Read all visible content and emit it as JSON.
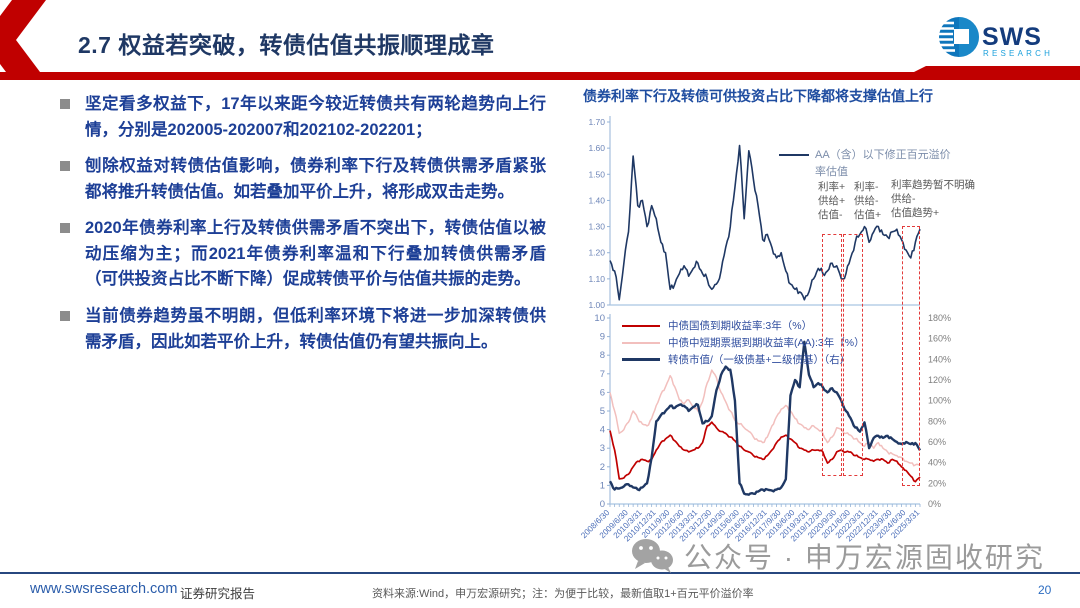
{
  "header": {
    "title": "2.7 权益若突破，转债估值共振顺理成章",
    "logo": {
      "name": "SWS",
      "sub": "RESEARCH"
    },
    "accent_color": "#c00000",
    "title_color": "#1f3864"
  },
  "bullets": [
    "坚定看多权益下，17年以来距今较近转债共有两轮趋势向上行情，分别是202005-202007和202102-202201；",
    "刨除权益对转债估值影响，债券利率下行及转债供需矛盾紧张都将推升转债估值。如若叠加平价上升，将形成双击走势。",
    "2020年债券利率上行及转债供需矛盾不突出下，转债估值以被动压缩为主；而2021年债券利率温和下行叠加转债供需矛盾（可供投资占比不断下降）促成转债平价与估值共振的走势。",
    "当前债券趋势虽不明朗，但低利率环境下将进一步加深转债供需矛盾，因此如若平价上升，转债估值仍有望共振向上。"
  ],
  "chart_panel": {
    "title": "债券利率下行及转债可供投资占比下降都将支撑估值上行",
    "annotations": [
      [
        "利率+",
        "供给+",
        "估值-"
      ],
      [
        "利率-",
        "供给-",
        "估值+"
      ],
      [
        "利率趋势暂不明确",
        "供给-",
        "估值趋势+"
      ]
    ],
    "highlight_color": "#e23b3b"
  },
  "chart_data": [
    {
      "type": "line",
      "name": "转债估值",
      "legend": "AA（含）以下修正百元溢价率估值",
      "ylim": [
        1.0,
        1.7
      ],
      "yticks": [
        "1.00",
        "1.10",
        "1.20",
        "1.30",
        "1.40",
        "1.50",
        "1.60",
        "1.70"
      ],
      "x_range": "2008/6/30 - 2025/3/31, quarterly",
      "grid": false,
      "legend_position": "right-center",
      "series": [
        {
          "name": "AA（含）以下修正百元溢价率估值",
          "color": "#1f3864",
          "values": [
            1.17,
            1.13,
            1.02,
            1.16,
            1.28,
            1.57,
            1.38,
            1.4,
            1.3,
            1.38,
            1.33,
            1.24,
            1.2,
            1.06,
            1.08,
            1.12,
            1.15,
            1.11,
            1.14,
            1.16,
            1.12,
            1.1,
            1.06,
            1.08,
            1.13,
            1.22,
            1.3,
            1.45,
            1.61,
            1.33,
            1.59,
            1.48,
            1.38,
            1.25,
            1.27,
            1.22,
            1.18,
            1.2,
            1.13,
            1.08,
            1.06,
            1.05,
            1.02,
            1.05,
            1.1,
            1.14,
            1.12,
            1.13,
            1.16,
            1.15,
            1.1,
            1.12,
            1.18,
            1.24,
            1.27,
            1.3,
            1.24,
            1.28,
            1.3,
            1.27,
            1.26,
            1.28,
            1.29,
            1.25,
            1.21,
            1.18,
            1.24,
            1.29
          ]
        }
      ],
      "highlight_periods": [
        "2020/05-2020/07",
        "2021/02-2022/01",
        "2024Q4-2025Q1"
      ]
    },
    {
      "type": "line",
      "name": "债券利率与转债可供投资占比",
      "ylim_left": [
        0,
        10
      ],
      "ylim_right": [
        0,
        180
      ],
      "yticks_left": [
        "0",
        "1",
        "2",
        "3",
        "4",
        "5",
        "6",
        "7",
        "8",
        "9",
        "10"
      ],
      "yticks_right": [
        "0%",
        "20%",
        "40%",
        "60%",
        "80%",
        "100%",
        "120%",
        "140%",
        "160%",
        "180%"
      ],
      "grid": false,
      "legend_position": "top-left",
      "x_tick_labels": [
        "2008/6/30",
        "2009/6/30",
        "2010/3/31",
        "2010/12/31",
        "2011/9/30",
        "2012/6/30",
        "2013/3/31",
        "2013/12/30",
        "2014/9/30",
        "2015/6/30",
        "2016/3/31",
        "2016/12/31",
        "2017/9/30",
        "2018/6/30",
        "2019/3/31",
        "2019/12/30",
        "2020/9/30",
        "2021/6/30",
        "2022/3/31",
        "2022/12/31",
        "2023/9/30",
        "2024/6/30",
        "2025/3/31"
      ],
      "x_tick_indices": [
        0,
        4,
        7,
        10,
        13,
        16,
        19,
        22,
        25,
        28,
        31,
        34,
        37,
        40,
        43,
        46,
        49,
        52,
        55,
        58,
        61,
        64,
        67
      ],
      "n_points": 68,
      "series": [
        {
          "name": "中债国债到期收益率:3年（%）",
          "axis": "left",
          "color": "#c00000",
          "values": [
            3.95,
            2.9,
            1.35,
            1.4,
            1.6,
            2.0,
            2.3,
            2.4,
            2.3,
            2.4,
            2.9,
            3.3,
            3.5,
            3.7,
            3.4,
            3.1,
            2.9,
            2.8,
            2.9,
            3.0,
            3.3,
            4.2,
            4.4,
            4.1,
            3.9,
            3.8,
            3.6,
            3.4,
            3.1,
            2.9,
            2.8,
            2.6,
            2.5,
            2.4,
            2.6,
            2.9,
            3.3,
            3.6,
            3.7,
            3.5,
            3.3,
            3.0,
            2.9,
            2.8,
            2.9,
            2.9,
            2.8,
            2.2,
            2.4,
            2.8,
            2.9,
            2.8,
            2.8,
            2.6,
            2.5,
            2.4,
            2.4,
            2.3,
            2.4,
            2.4,
            2.2,
            2.4,
            2.3,
            2.0,
            1.8,
            1.5,
            1.2,
            1.45
          ]
        },
        {
          "name": "中债中短期票据到期收益率(AA):3年（%）",
          "axis": "left",
          "color": "#f2bfbd",
          "values": [
            6.0,
            5.0,
            3.8,
            4.0,
            4.4,
            5.0,
            4.6,
            4.3,
            4.2,
            4.6,
            5.3,
            5.9,
            6.3,
            6.9,
            6.3,
            5.6,
            5.4,
            5.6,
            5.2,
            5.0,
            5.5,
            6.5,
            7.2,
            6.8,
            6.0,
            5.5,
            5.0,
            4.5,
            4.3,
            4.1,
            3.9,
            3.6,
            3.4,
            3.3,
            3.6,
            4.2,
            4.7,
            5.1,
            5.3,
            5.0,
            4.6,
            4.3,
            4.1,
            4.0,
            4.2,
            4.0,
            3.8,
            3.3,
            3.6,
            4.1,
            4.0,
            3.8,
            3.7,
            3.5,
            3.3,
            3.1,
            3.3,
            3.0,
            3.3,
            3.0,
            2.8,
            2.7,
            2.6,
            2.5,
            2.3,
            2.2,
            2.1,
            2.1
          ]
        },
        {
          "name": "转债市值/（一级债基+二级债基）（右）",
          "axis": "right",
          "color": "#1f3864",
          "values": [
            22,
            14,
            15,
            17,
            19,
            16,
            14,
            16,
            20,
            45,
            80,
            86,
            90,
            95,
            93,
            96,
            95,
            90,
            94,
            96,
            78,
            80,
            85,
            110,
            125,
            133,
            130,
            100,
            20,
            10,
            9,
            10,
            12,
            14,
            14,
            13,
            14,
            16,
            24,
            105,
            120,
            113,
            157,
            125,
            113,
            117,
            113,
            108,
            112,
            108,
            100,
            90,
            83,
            74,
            70,
            79,
            54,
            64,
            66,
            64,
            66,
            63,
            60,
            58,
            60,
            58,
            59,
            52
          ]
        }
      ]
    }
  ],
  "watermark": {
    "icon": "wechat-icon",
    "text": "公众号 · 申万宏源固收研究"
  },
  "footer": {
    "website": "www.swsresearch.com",
    "report_type": "证券研究报告",
    "source_note": "资料来源:Wind，申万宏源研究；注：为便于比较，最新值取1+百元平价溢价率",
    "page_number": "20"
  }
}
